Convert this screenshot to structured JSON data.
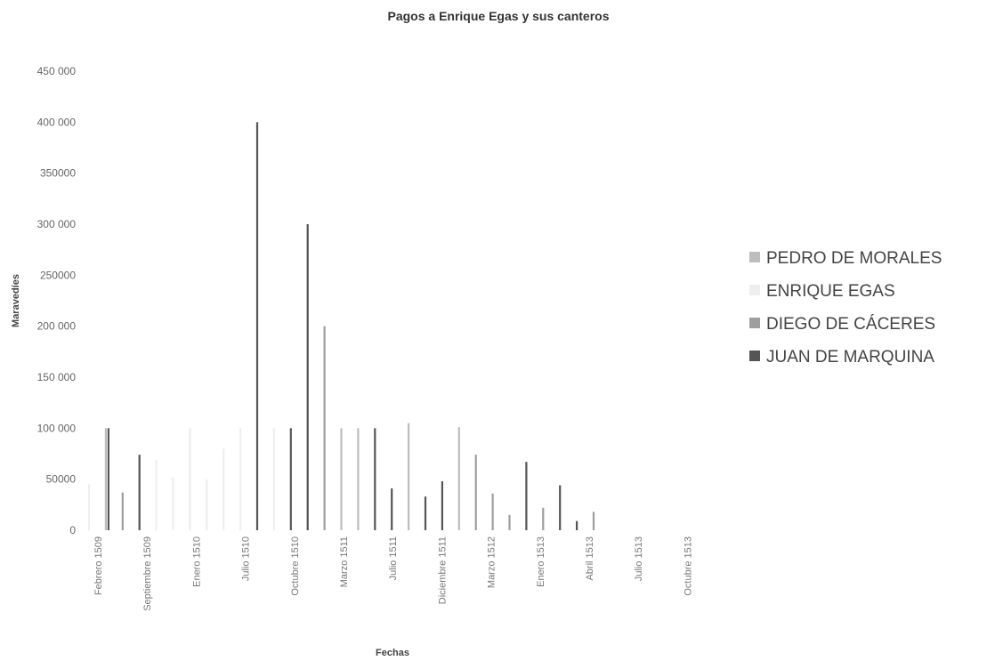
{
  "chart_data": {
    "type": "bar",
    "title": "Pagos a Enrique Egas y sus canteros",
    "xlabel": "Fechas",
    "ylabel": "Maravedíes",
    "ylim": [
      0,
      450000
    ],
    "yticks": [
      {
        "value": 0,
        "label": "0"
      },
      {
        "value": 50000,
        "label": "50000"
      },
      {
        "value": 100000,
        "label": "100 000"
      },
      {
        "value": 150000,
        "label": "150 000"
      },
      {
        "value": 200000,
        "label": "200 000"
      },
      {
        "value": 250000,
        "label": "250000"
      },
      {
        "value": 300000,
        "label": "300 000"
      },
      {
        "value": 350000,
        "label": "350000"
      },
      {
        "value": 400000,
        "label": "400 000"
      },
      {
        "value": 450000,
        "label": "450 000"
      }
    ],
    "x_tick_labels": [
      "Febrero 1509",
      "Septiembre 1509",
      "Enero 1510",
      "Julio 1510",
      "Octubre 1510",
      "Marzo 1511",
      "Julio 1511",
      "Diciembre 1511",
      "Marzo 1512",
      "Enero 1513",
      "Abril 1513",
      "Julio 1513",
      "Octubre 1513"
    ],
    "legend_position": "right",
    "series": [
      {
        "name": "PEDRO DE MORALES",
        "color": "#bdbdbd"
      },
      {
        "name": "ENRIQUE EGAS",
        "color": "#eeeeee"
      },
      {
        "name": "DIEGO DE CÁCERES",
        "color": "#9e9e9e"
      },
      {
        "name": "JUAN DE MARQUINA",
        "color": "#555555"
      }
    ],
    "bars": [
      {
        "slot": 0,
        "series": "ENRIQUE EGAS",
        "value": 45000
      },
      {
        "slot": 1,
        "series": "PEDRO DE MORALES",
        "value": 100000
      },
      {
        "slot": 1,
        "series": "JUAN DE MARQUINA",
        "value": 100000
      },
      {
        "slot": 2,
        "series": "DIEGO DE CÁCERES",
        "value": 37000
      },
      {
        "slot": 3,
        "series": "JUAN DE MARQUINA",
        "value": 74000
      },
      {
        "slot": 4,
        "series": "ENRIQUE EGAS",
        "value": 69000
      },
      {
        "slot": 5,
        "series": "ENRIQUE EGAS",
        "value": 52000
      },
      {
        "slot": 6,
        "series": "ENRIQUE EGAS",
        "value": 100000
      },
      {
        "slot": 7,
        "series": "ENRIQUE EGAS",
        "value": 50000
      },
      {
        "slot": 8,
        "series": "ENRIQUE EGAS",
        "value": 80000
      },
      {
        "slot": 9,
        "series": "ENRIQUE EGAS",
        "value": 100000
      },
      {
        "slot": 10,
        "series": "JUAN DE MARQUINA",
        "value": 400000
      },
      {
        "slot": 11,
        "series": "ENRIQUE EGAS",
        "value": 100000
      },
      {
        "slot": 12,
        "series": "JUAN DE MARQUINA",
        "value": 100000
      },
      {
        "slot": 13,
        "series": "JUAN DE MARQUINA",
        "value": 300000
      },
      {
        "slot": 14,
        "series": "DIEGO DE CÁCERES",
        "value": 200000
      },
      {
        "slot": 15,
        "series": "PEDRO DE MORALES",
        "value": 100000
      },
      {
        "slot": 16,
        "series": "PEDRO DE MORALES",
        "value": 100000
      },
      {
        "slot": 17,
        "series": "JUAN DE MARQUINA",
        "value": 100000
      },
      {
        "slot": 18,
        "series": "JUAN DE MARQUINA",
        "value": 41000
      },
      {
        "slot": 19,
        "series": "PEDRO DE MORALES",
        "value": 105000
      },
      {
        "slot": 20,
        "series": "JUAN DE MARQUINA",
        "value": 33000
      },
      {
        "slot": 21,
        "series": "JUAN DE MARQUINA",
        "value": 48000
      },
      {
        "slot": 22,
        "series": "PEDRO DE MORALES",
        "value": 101000
      },
      {
        "slot": 23,
        "series": "DIEGO DE CÁCERES",
        "value": 74000
      },
      {
        "slot": 24,
        "series": "DIEGO DE CÁCERES",
        "value": 36000
      },
      {
        "slot": 25,
        "series": "DIEGO DE CÁCERES",
        "value": 15000
      },
      {
        "slot": 26,
        "series": "JUAN DE MARQUINA",
        "value": 67000
      },
      {
        "slot": 27,
        "series": "DIEGO DE CÁCERES",
        "value": 22000
      },
      {
        "slot": 28,
        "series": "JUAN DE MARQUINA",
        "value": 44000
      },
      {
        "slot": 29,
        "series": "JUAN DE MARQUINA",
        "value": 9000
      },
      {
        "slot": 30,
        "series": "DIEGO DE CÁCERES",
        "value": 18000
      }
    ]
  }
}
